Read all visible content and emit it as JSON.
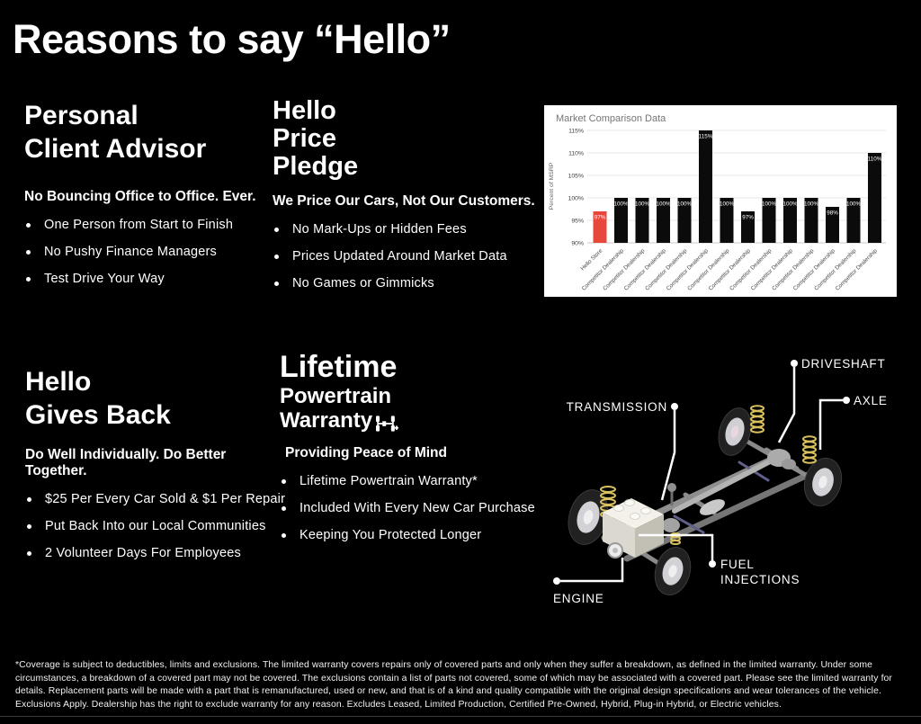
{
  "page": {
    "title": "Reasons to say “Hello”"
  },
  "sections": {
    "advisor": {
      "heading": [
        "Personal",
        "Client Advisor"
      ],
      "subhead": "No Bouncing Office to Office. Ever.",
      "bullets": [
        "One Person from Start to Finish",
        "No Pushy Finance Managers",
        "Test Drive Your Way"
      ]
    },
    "pledge": {
      "heading": [
        "Hello",
        "Price",
        "Pledge"
      ],
      "subhead": "We Price Our Cars, Not Our Customers.",
      "bullets": [
        "No Mark-Ups or Hidden Fees",
        "Prices Updated Around Market Data",
        "No Games or Gimmicks"
      ]
    },
    "gives_back": {
      "heading": [
        "Hello",
        "Gives Back"
      ],
      "subhead": "Do Well Individually. Do Better Together.",
      "bullets": [
        "$25 Per Every Car Sold & $1 Per Repair",
        "Put Back Into our Local Communities",
        "2 Volunteer Days For Employees"
      ]
    },
    "warranty": {
      "heading": [
        "Lifetime",
        "Powertrain",
        "Warranty"
      ],
      "subhead": "Providing Peace of Mind",
      "bullets": [
        "Lifetime Powertrain Warranty*",
        "Included With Every New Car Purchase",
        "Keeping You Protected Longer"
      ]
    }
  },
  "chart_data": {
    "type": "bar",
    "title": "Market Comparison Data",
    "ylabel": "Percent of MSRP",
    "categories": [
      "Hello Store",
      "Competitor Dealership",
      "Competitor Dealership",
      "Competitor Dealership",
      "Competitor Dealership",
      "Competitor Dealership",
      "Competitor Dealership",
      "Competitor Dealership",
      "Competitor Dealership",
      "Competitor Dealership",
      "Competitor Dealership",
      "Competitor Dealership",
      "Competitor Dealership",
      "Competitor Dealership"
    ],
    "values": [
      97,
      100,
      100,
      100,
      100,
      115,
      100,
      97,
      100,
      100,
      100,
      98,
      100,
      110
    ],
    "value_label_suffix": "%",
    "ylim": [
      90,
      115
    ],
    "yticks": [
      90,
      95,
      100,
      105,
      110,
      115
    ],
    "grid": true,
    "legend": false,
    "highlight_index": 0,
    "highlight_color": "#e8483c",
    "bar_color": "#0b0b0b"
  },
  "diagram": {
    "labels": {
      "driveshaft": "DRIVESHAFT",
      "axle": "AXLE",
      "transmission": "TRANSMISSION",
      "fuel_injections": "FUEL INJECTIONS",
      "engine": "ENGINE"
    }
  },
  "footer": {
    "disclaimer": "*Coverage is subject to deductibles, limits and exclusions. The limited warranty covers repairs only of covered parts and only when they suffer a breakdown, as defined in the limited warranty. Under some circumstances, a breakdown of a covered part may not be covered. The exclusions contain a list of parts not covered, some of which may be associated with a covered part. Please see the limited warranty for details. Replacement parts will be made with a part that is remanufactured, used or new, and that is of a kind and quality compatible with the original design specifications and wear tolerances of the vehicle. Exclusions Apply. Dealership has the right to exclude warranty for any reason. Excludes Leased, Limited Production, Certified Pre-Owned, Hybrid, Plug-in Hybrid, or Electric vehicles."
  },
  "colors": {
    "highlight_red": "#e8483c",
    "spring_yellow": "#d9c25e",
    "chart_title_gray": "#757575"
  }
}
